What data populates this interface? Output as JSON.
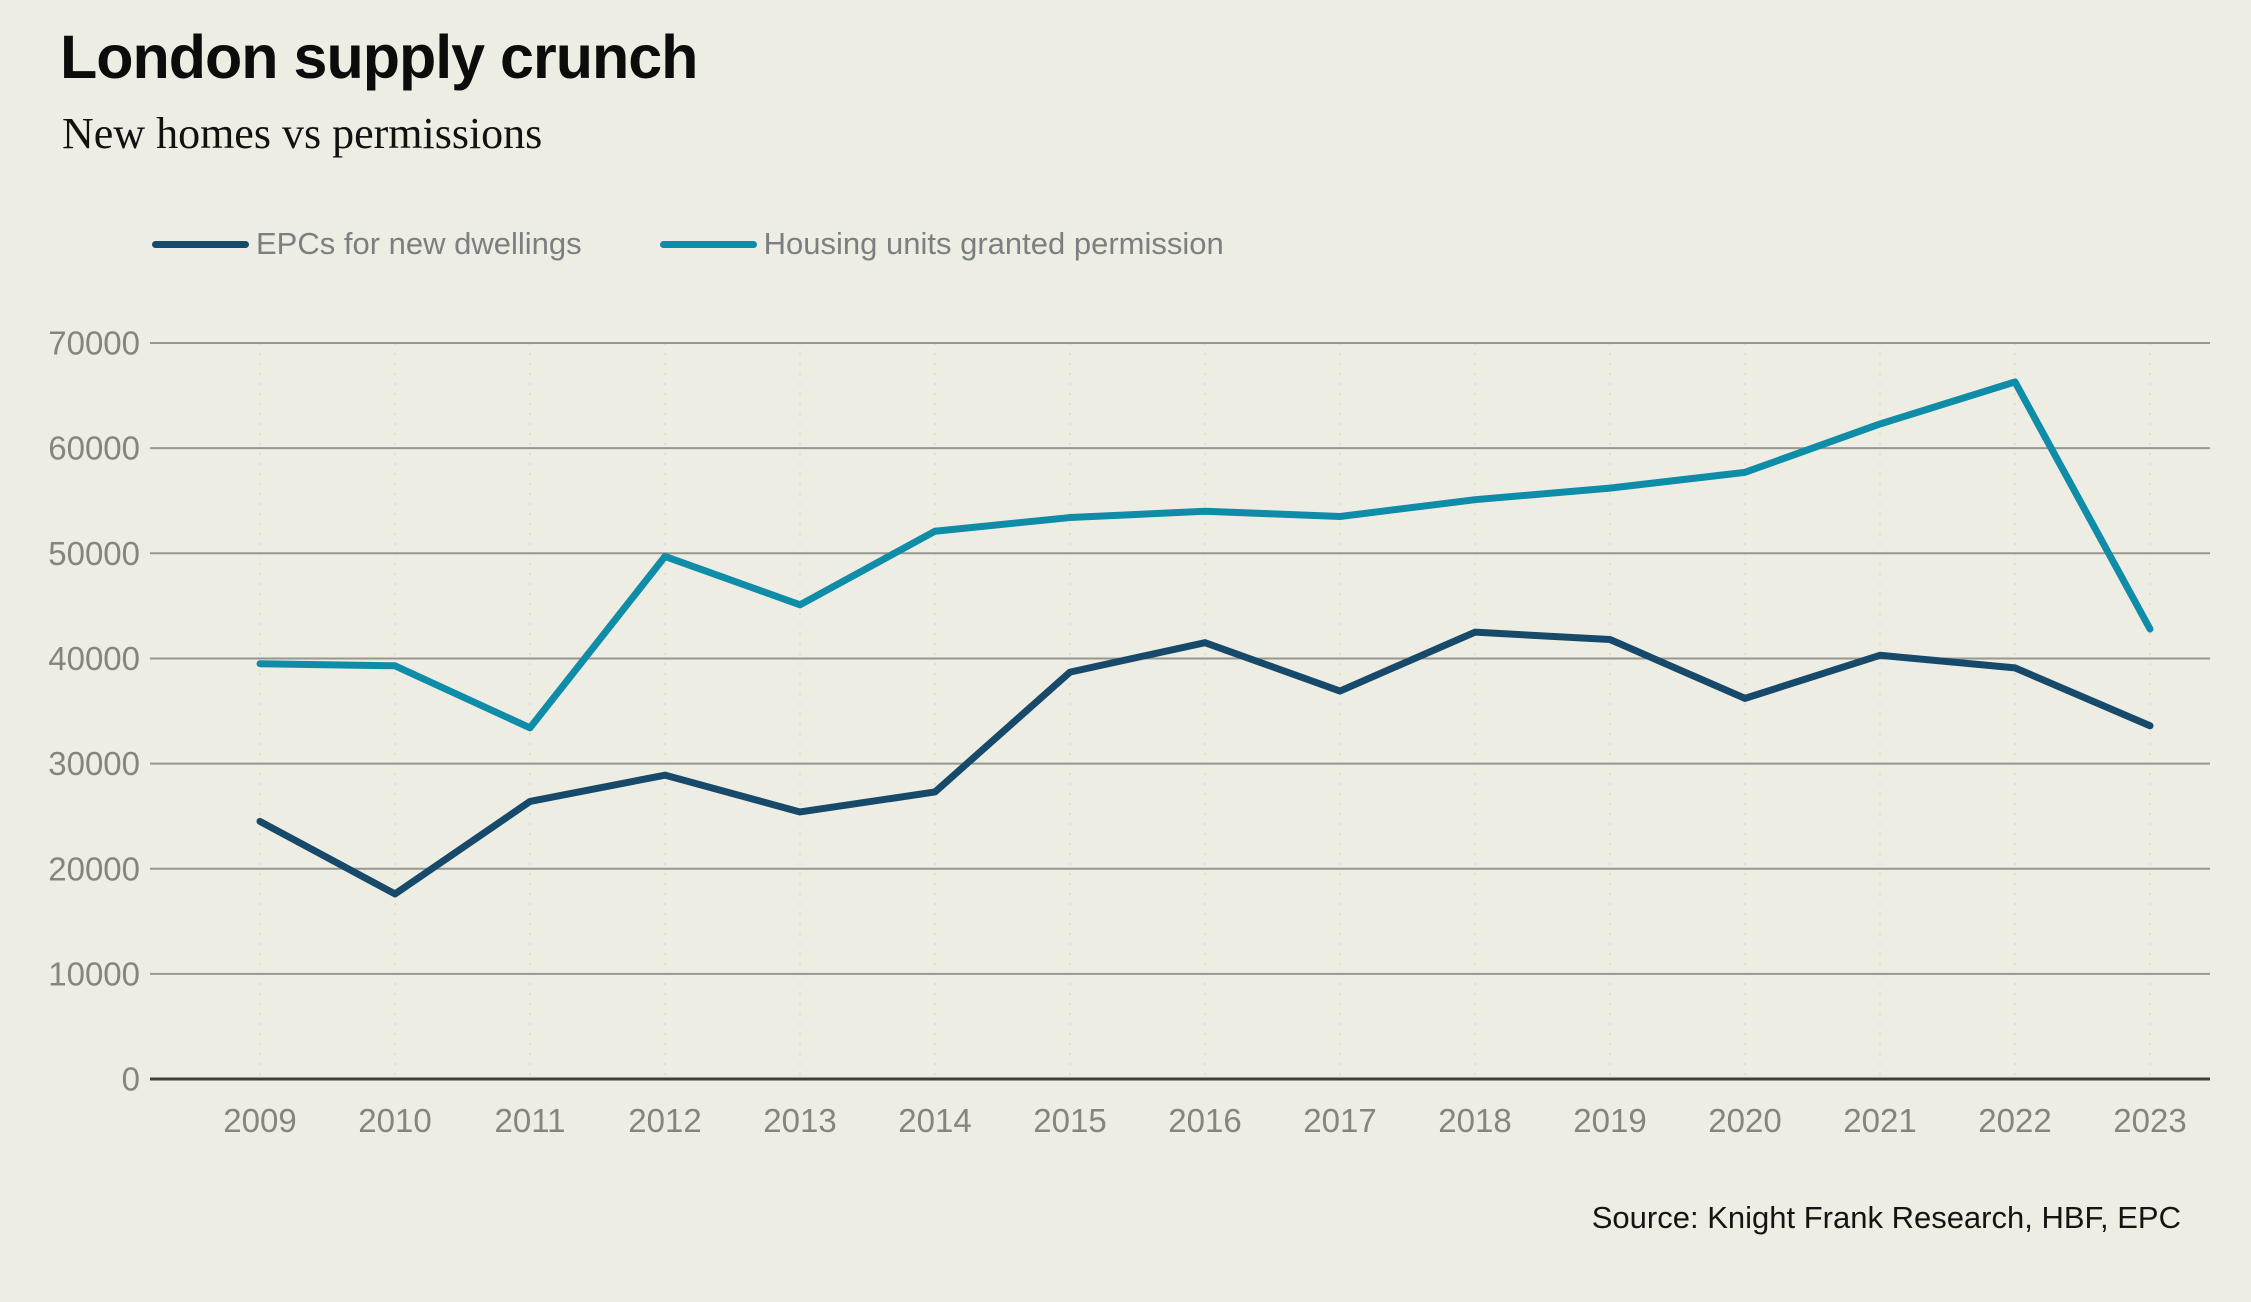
{
  "header": {
    "title": "London supply crunch",
    "subtitle": "New homes vs permissions"
  },
  "legend": {
    "items": [
      {
        "label": "EPCs for new dwellings",
        "color": "#17496B"
      },
      {
        "label": "Housing units granted permission",
        "color": "#0E8CA8"
      }
    ]
  },
  "source": {
    "text": "Source: Knight Frank Research, HBF, EPC"
  },
  "colors": {
    "background": "#EDEDE3",
    "gridline": "#97978F",
    "zero_axis": "#3F3F3A",
    "tick_label": "#85857C",
    "navy_series": "#17496B",
    "teal_series": "#0E8CA8"
  },
  "chart_data": {
    "type": "line",
    "title": "London supply crunch",
    "subtitle": "New homes vs permissions",
    "categories": [
      2009,
      2010,
      2011,
      2012,
      2013,
      2014,
      2015,
      2016,
      2017,
      2018,
      2019,
      2020,
      2021,
      2022,
      2023
    ],
    "series": [
      {
        "name": "EPCs for new dwellings",
        "color": "#17496B",
        "values": [
          24500,
          17600,
          26400,
          28900,
          25400,
          27300,
          38700,
          41500,
          36900,
          42500,
          41800,
          36200,
          40300,
          39100,
          33600
        ]
      },
      {
        "name": "Housing units granted permission",
        "color": "#0E8CA8",
        "values": [
          39500,
          39300,
          33400,
          49700,
          45100,
          52100,
          53400,
          54000,
          53500,
          55100,
          56200,
          57700,
          62300,
          66300,
          42800
        ]
      }
    ],
    "xlabel": "",
    "ylabel": "",
    "ylim": [
      0,
      70000
    ],
    "ytick_step": 10000,
    "yticks": [
      0,
      10000,
      20000,
      30000,
      40000,
      50000,
      60000,
      70000
    ],
    "grid": "horizontal",
    "legend_position": "top-left"
  }
}
